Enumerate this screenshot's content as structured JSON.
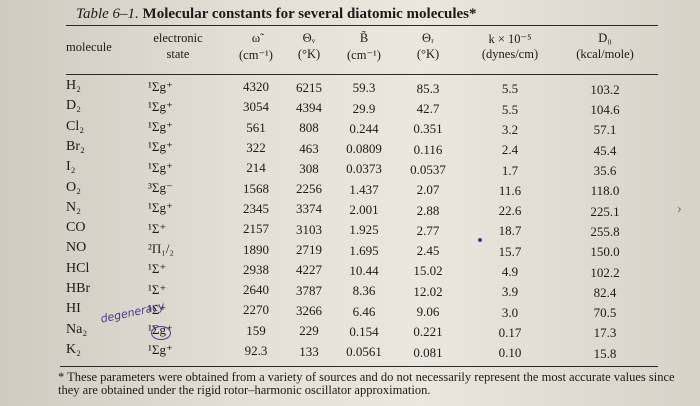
{
  "caption": {
    "number": "Table 6–1.",
    "title": "Molecular constants for several diatomic molecules*"
  },
  "headers": [
    [
      "molecule"
    ],
    [
      "electronic",
      "state"
    ],
    [
      "ω̃",
      "(cm⁻¹)"
    ],
    [
      "Θᵥ",
      "(°K)"
    ],
    [
      "B̃",
      "(cm⁻¹)"
    ],
    [
      "Θᵣ",
      "(°K)"
    ],
    [
      "k × 10⁻⁵",
      "(dynes/cm)"
    ],
    [
      "D₀",
      "(kcal/mole)"
    ]
  ],
  "rows": [
    [
      "H₂",
      "¹Σg⁺",
      "4320",
      "6215",
      "59.3",
      "85.3",
      "5.5",
      "103.2"
    ],
    [
      "D₂",
      "¹Σg⁺",
      "3054",
      "4394",
      "29.9",
      "42.7",
      "5.5",
      "104.6"
    ],
    [
      "Cl₂",
      "¹Σg⁺",
      "561",
      "808",
      "0.244",
      "0.351",
      "3.2",
      "57.1"
    ],
    [
      "Br₂",
      "¹Σg⁺",
      "322",
      "463",
      "0.0809",
      "0.116",
      "2.4",
      "45.4"
    ],
    [
      "I₂",
      "¹Σg⁺",
      "214",
      "308",
      "0.0373",
      "0.0537",
      "1.7",
      "35.6"
    ],
    [
      "O₂",
      "³Σg⁻",
      "1568",
      "2256",
      "1.437",
      "2.07",
      "11.6",
      "118.0"
    ],
    [
      "N₂",
      "¹Σg⁺",
      "2345",
      "3374",
      "2.001",
      "2.88",
      "22.6",
      "225.1"
    ],
    [
      "CO",
      "¹Σ⁺",
      "2157",
      "3103",
      "1.925",
      "2.77",
      "18.7",
      "255.8"
    ],
    [
      "NO",
      "²Π₁/₂",
      "1890",
      "2719",
      "1.695",
      "2.45",
      "15.7",
      "150.0"
    ],
    [
      "HCl",
      "¹Σ⁺",
      "2938",
      "4227",
      "10.44",
      "15.02",
      "4.9",
      "102.2"
    ],
    [
      "HBr",
      "¹Σ⁺",
      "2640",
      "3787",
      "8.36",
      "12.02",
      "3.9",
      "82.4"
    ],
    [
      "HI",
      "¹Σ⁺",
      "2270",
      "3266",
      "6.46",
      "9.06",
      "3.0",
      "70.5"
    ],
    [
      "Na₂",
      "¹Σg⁺",
      "159",
      "229",
      "0.154",
      "0.221",
      "0.17",
      "17.3"
    ],
    [
      "K₂",
      "¹Σg⁺",
      "92.3",
      "133",
      "0.0561",
      "0.081",
      "0.10",
      "15.8"
    ]
  ],
  "footnote": "* These parameters were obtained from a variety of sources and do not necessarily represent the most accurate values since they are obtained under the rigid rotor–harmonic oscillator approximation.",
  "handwriting": "degeneracy"
}
